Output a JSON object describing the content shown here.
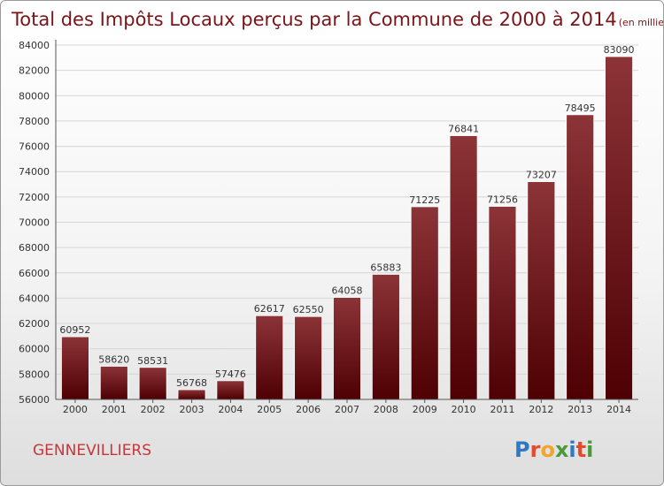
{
  "title": "Total des Impôts Locaux perçus par la Commune de 2000 à 2014",
  "unit": "(en milliers d'€)",
  "city": "GENNEVILLIERS",
  "logo": "Proxiti",
  "colors": {
    "bar_top": "#8c3438",
    "bar_bottom": "#4e0003",
    "title": "#7a1418",
    "city": "#c8363a",
    "grid": "#d6d6d6",
    "logo_letters": [
      "#2f78c4",
      "#e64a2a",
      "#f2a52a",
      "#4a9a3a",
      "#2f78c4",
      "#e64a2a",
      "#4a9a3a"
    ]
  },
  "chart_data": {
    "type": "bar",
    "title": "Total des Impôts Locaux perçus par la Commune de 2000 à 2014",
    "unit": "(en milliers d'€)",
    "categories": [
      "2000",
      "2001",
      "2002",
      "2003",
      "2004",
      "2005",
      "2006",
      "2007",
      "2008",
      "2009",
      "2010",
      "2011",
      "2012",
      "2013",
      "2014"
    ],
    "values": [
      60952,
      58620,
      58531,
      56768,
      57476,
      62617,
      62550,
      64058,
      65883,
      71225,
      76841,
      71256,
      73207,
      78495,
      83090
    ],
    "yticks": [
      56000,
      58000,
      60000,
      62000,
      64000,
      66000,
      68000,
      70000,
      72000,
      74000,
      76000,
      78000,
      80000,
      82000,
      84000
    ],
    "ylim": [
      56000,
      84000
    ],
    "grid": true,
    "legend": "none"
  }
}
